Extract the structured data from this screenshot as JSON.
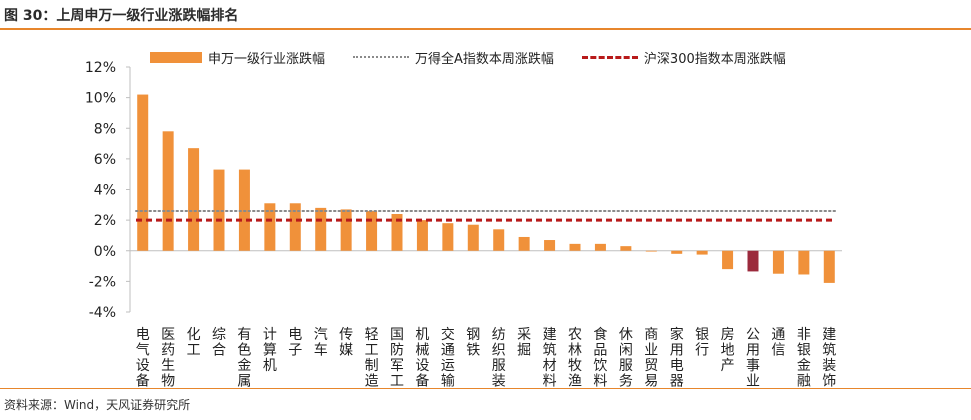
{
  "figure": {
    "title": "图 30：上周申万一级行业涨跌幅排名",
    "source": "资料来源：Wind，天风证券研究所"
  },
  "colors": {
    "accent": "#e7862c",
    "bar": "#f0913a",
    "bar_highlight": "#9b2a3c",
    "wind_a_line": "#8a8a8a",
    "hs300_line": "#b81a1a"
  },
  "chart_data": {
    "type": "bar",
    "categories": [
      "电气设备",
      "医药生物",
      "化工",
      "综合",
      "有色金属",
      "计算机",
      "电子",
      "汽车",
      "传媒",
      "轻工制造",
      "国防军工",
      "机械设备",
      "交通运输",
      "钢铁",
      "纺织服装",
      "采掘",
      "建筑材料",
      "农林牧渔",
      "食品饮料",
      "休闲服务",
      "商业贸易",
      "家用电器",
      "银行",
      "房地产",
      "公用事业",
      "通信",
      "非银金融",
      "建筑装饰"
    ],
    "series": [
      {
        "name": "申万一级行业涨跌幅",
        "type": "bar",
        "values": [
          10.2,
          7.8,
          6.7,
          5.3,
          5.3,
          3.1,
          3.1,
          2.8,
          2.7,
          2.6,
          2.4,
          2.0,
          1.8,
          1.7,
          1.4,
          0.9,
          0.7,
          0.45,
          0.45,
          0.3,
          -0.05,
          -0.2,
          -0.25,
          -1.2,
          -1.35,
          -1.5,
          -1.55,
          -2.1
        ],
        "highlight_index": 24
      },
      {
        "name": "万得全A指数本周涨跌幅",
        "type": "line",
        "style": "dotted",
        "value": 2.6
      },
      {
        "name": "沪深300指数本周涨跌幅",
        "type": "line",
        "style": "dashed",
        "value": 2.0
      }
    ],
    "ylim": [
      -4,
      12
    ],
    "yticks": [
      "-4%",
      "-2%",
      "0%",
      "2%",
      "4%",
      "6%",
      "8%",
      "10%",
      "12%"
    ],
    "grid": false,
    "legend_position": "top"
  }
}
